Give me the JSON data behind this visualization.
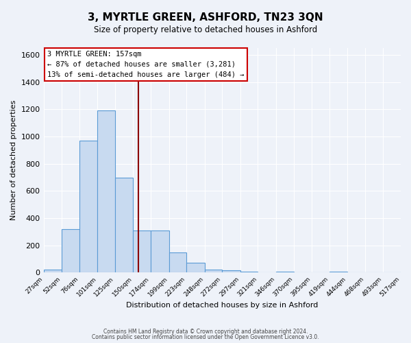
{
  "title": "3, MYRTLE GREEN, ASHFORD, TN23 3QN",
  "subtitle": "Size of property relative to detached houses in Ashford",
  "xlabel": "Distribution of detached houses by size in Ashford",
  "ylabel": "Number of detached properties",
  "bar_color": "#c8daf0",
  "bar_edge_color": "#5b9bd5",
  "vline_x": 157,
  "vline_color": "#8b0000",
  "annotation_title": "3 MYRTLE GREEN: 157sqm",
  "annotation_line1": "← 87% of detached houses are smaller (3,281)",
  "annotation_line2": "13% of semi-detached houses are larger (484) →",
  "annotation_box_color": "#ffffff",
  "annotation_box_edge": "#cc0000",
  "bins": [
    27,
    52,
    76,
    101,
    125,
    150,
    174,
    199,
    223,
    248,
    272,
    297,
    321,
    346,
    370,
    395,
    419,
    444,
    468,
    493,
    517
  ],
  "counts": [
    25,
    320,
    970,
    1190,
    700,
    310,
    310,
    150,
    75,
    25,
    20,
    10,
    5,
    10,
    5,
    5,
    10,
    5,
    5,
    5,
    10
  ],
  "ylim": [
    0,
    1650
  ],
  "yticks": [
    0,
    200,
    400,
    600,
    800,
    1000,
    1200,
    1400,
    1600
  ],
  "background_color": "#eef2f9",
  "grid_color": "#ffffff",
  "footer1": "Contains HM Land Registry data © Crown copyright and database right 2024.",
  "footer2": "Contains public sector information licensed under the Open Government Licence v3.0."
}
